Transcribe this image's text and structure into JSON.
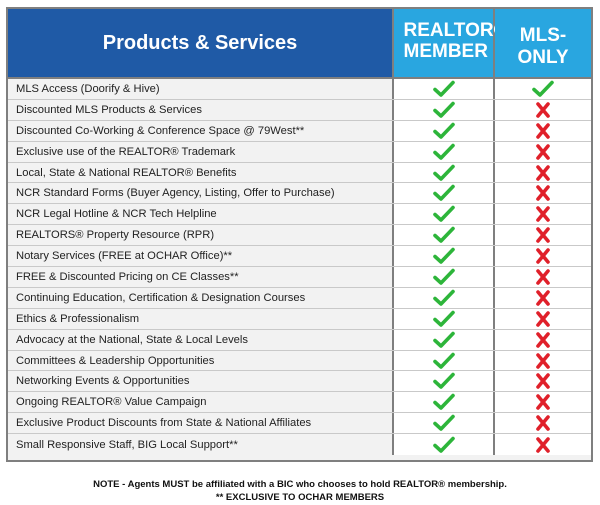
{
  "header": {
    "product_label": "Products & Services",
    "member_label": "REALTOR® MEMBER",
    "mls_label": "MLS-ONLY"
  },
  "colors": {
    "header_blue": "#1f5aa6",
    "header_light_blue": "#29a6e0",
    "check_green": "#2db53a",
    "cross_red": "#e0202a"
  },
  "rows": [
    {
      "label": "MLS Access (Doorify & Hive)",
      "member": "check",
      "mls": "check"
    },
    {
      "label": "Discounted MLS Products & Services",
      "member": "check",
      "mls": "cross"
    },
    {
      "label": "Discounted Co-Working & Conference Space @ 79West**",
      "member": "check",
      "mls": "cross"
    },
    {
      "label": "Exclusive use of the REALTOR® Trademark",
      "member": "check",
      "mls": "cross"
    },
    {
      "label": "Local, State & National REALTOR® Benefits",
      "member": "check",
      "mls": "cross"
    },
    {
      "label": "NCR Standard Forms (Buyer Agency, Listing, Offer to Purchase)",
      "member": "check",
      "mls": "cross"
    },
    {
      "label": "NCR Legal Hotline & NCR Tech Helpline",
      "member": "check",
      "mls": "cross"
    },
    {
      "label": "REALTORS® Property Resource (RPR)",
      "member": "check",
      "mls": "cross"
    },
    {
      "label": "Notary Services (FREE at OCHAR Office)**",
      "member": "check",
      "mls": "cross"
    },
    {
      "label": "FREE & Discounted Pricing on CE Classes**",
      "member": "check",
      "mls": "cross"
    },
    {
      "label": "Continuing Education, Certification & Designation Courses",
      "member": "check",
      "mls": "cross"
    },
    {
      "label": "Ethics & Professionalism",
      "member": "check",
      "mls": "cross"
    },
    {
      "label": "Advocacy at the National, State & Local Levels",
      "member": "check",
      "mls": "cross"
    },
    {
      "label": "Committees & Leadership Opportunities",
      "member": "check",
      "mls": "cross"
    },
    {
      "label": "Networking Events & Opportunities",
      "member": "check",
      "mls": "cross"
    },
    {
      "label": "Ongoing REALTOR® Value Campaign",
      "member": "check",
      "mls": "cross"
    },
    {
      "label": "Exclusive Product Discounts from State & National Affiliates",
      "member": "check",
      "mls": "cross"
    },
    {
      "label": "Small Responsive Staff, BIG Local Support**",
      "member": "check",
      "mls": "cross"
    }
  ],
  "footnotes": {
    "note": "NOTE - Agents MUST be affiliated with a BIC who chooses to hold REALTOR® membership.",
    "exclusive": "** EXCLUSIVE TO OCHAR MEMBERS"
  }
}
